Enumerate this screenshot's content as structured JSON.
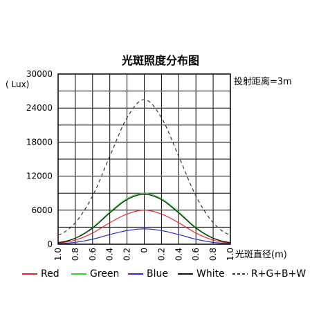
{
  "chart_data": {
    "type": "line",
    "title": "光斑照度分布图",
    "subtitle": "投射距离=3m",
    "ylabel": "( Lux)",
    "xlabel": "光斑直径(m)",
    "y_ticks": [
      "30000",
      "24000",
      "18000",
      "12000",
      "6000",
      "0"
    ],
    "x_ticks": [
      "1.0",
      "0.8",
      "0.6",
      "0.4",
      "0.2",
      "0",
      "0.2",
      "0.4",
      "0.6",
      "0.8",
      "1.0"
    ],
    "ylim": [
      0,
      30000
    ],
    "xlim": [
      -1.0,
      1.0
    ],
    "grid": true,
    "legend_position": "bottom",
    "x": [
      -1.0,
      -0.8,
      -0.6,
      -0.4,
      -0.2,
      0,
      0.2,
      0.4,
      0.6,
      0.8,
      1.0
    ],
    "series": [
      {
        "name": "Red",
        "color": "#e8262a",
        "dash": false,
        "values": [
          200,
          740,
          1970,
          3780,
          5320,
          6000,
          5320,
          3780,
          1970,
          740,
          200
        ]
      },
      {
        "name": "Green",
        "color": "#22dd22",
        "dash": false,
        "values": [
          300,
          1110,
          2960,
          5690,
          8020,
          9000,
          8020,
          5690,
          2960,
          1110,
          300
        ]
      },
      {
        "name": "Blue",
        "color": "#2b2bd6",
        "dash": false,
        "values": [
          100,
          330,
          880,
          1700,
          2400,
          2700,
          2400,
          1700,
          880,
          330,
          100
        ]
      },
      {
        "name": "White",
        "color": "#111111",
        "dash": false,
        "values": [
          290,
          1050,
          2840,
          5510,
          7850,
          8800,
          7850,
          5510,
          2840,
          1050,
          290
        ]
      },
      {
        "name": "R+G+B+W",
        "color": "#333333",
        "dash": true,
        "values": [
          1600,
          3800,
          8500,
          15500,
          22300,
          25500,
          22300,
          15500,
          8500,
          3800,
          1600
        ]
      }
    ]
  }
}
